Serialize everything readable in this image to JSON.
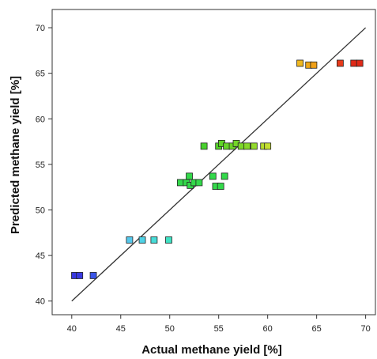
{
  "chart_data": {
    "type": "scatter",
    "title": "",
    "xlabel": "Actual methane yield [%]",
    "ylabel": "Predicted methane yield [%]",
    "xlim": [
      38,
      71
    ],
    "ylim": [
      38.5,
      72
    ],
    "xticks": [
      40,
      45,
      50,
      55,
      60,
      65,
      70
    ],
    "yticks": [
      40,
      45,
      50,
      55,
      60,
      65,
      70
    ],
    "grid": false,
    "reference_line": {
      "from": [
        40,
        40
      ],
      "to": [
        70,
        70
      ]
    },
    "points": [
      {
        "x": 40.3,
        "y": 42.8,
        "color": "#3a3ae0"
      },
      {
        "x": 40.8,
        "y": 42.8,
        "color": "#3a3ae0"
      },
      {
        "x": 42.2,
        "y": 42.8,
        "color": "#3a55e8"
      },
      {
        "x": 45.9,
        "y": 46.7,
        "color": "#55c8ec"
      },
      {
        "x": 47.2,
        "y": 46.7,
        "color": "#4fd2e6"
      },
      {
        "x": 48.4,
        "y": 46.7,
        "color": "#47dcd8"
      },
      {
        "x": 49.9,
        "y": 46.7,
        "color": "#3fe2c4"
      },
      {
        "x": 51.1,
        "y": 53.0,
        "color": "#33d94a"
      },
      {
        "x": 51.7,
        "y": 53.0,
        "color": "#33d94a"
      },
      {
        "x": 52.0,
        "y": 53.7,
        "color": "#33d94a"
      },
      {
        "x": 52.1,
        "y": 52.7,
        "color": "#33d94a"
      },
      {
        "x": 52.5,
        "y": 53.0,
        "color": "#33d94a"
      },
      {
        "x": 53.0,
        "y": 53.0,
        "color": "#33d94a"
      },
      {
        "x": 53.5,
        "y": 57.0,
        "color": "#48d02e"
      },
      {
        "x": 54.4,
        "y": 53.7,
        "color": "#33d94a"
      },
      {
        "x": 54.7,
        "y": 52.6,
        "color": "#33d94a"
      },
      {
        "x": 55.0,
        "y": 57.0,
        "color": "#55d22a"
      },
      {
        "x": 55.2,
        "y": 52.6,
        "color": "#33d94a"
      },
      {
        "x": 55.3,
        "y": 57.3,
        "color": "#60d428"
      },
      {
        "x": 55.6,
        "y": 53.7,
        "color": "#33d94a"
      },
      {
        "x": 55.8,
        "y": 57.0,
        "color": "#66d428"
      },
      {
        "x": 56.4,
        "y": 57.0,
        "color": "#6ed528"
      },
      {
        "x": 56.8,
        "y": 57.3,
        "color": "#74d628"
      },
      {
        "x": 57.3,
        "y": 57.0,
        "color": "#7cd72a"
      },
      {
        "x": 57.9,
        "y": 57.0,
        "color": "#86d82a"
      },
      {
        "x": 58.6,
        "y": 57.0,
        "color": "#92d92c"
      },
      {
        "x": 59.6,
        "y": 57.0,
        "color": "#b6dc2e"
      },
      {
        "x": 60.0,
        "y": 57.0,
        "color": "#c4de30"
      },
      {
        "x": 63.3,
        "y": 66.1,
        "color": "#f0b820"
      },
      {
        "x": 64.2,
        "y": 65.9,
        "color": "#f0a818"
      },
      {
        "x": 64.7,
        "y": 65.9,
        "color": "#f0a018"
      },
      {
        "x": 67.4,
        "y": 66.1,
        "color": "#e83a1a"
      },
      {
        "x": 68.8,
        "y": 66.1,
        "color": "#e02a18"
      },
      {
        "x": 69.4,
        "y": 66.1,
        "color": "#e02a18"
      }
    ]
  }
}
